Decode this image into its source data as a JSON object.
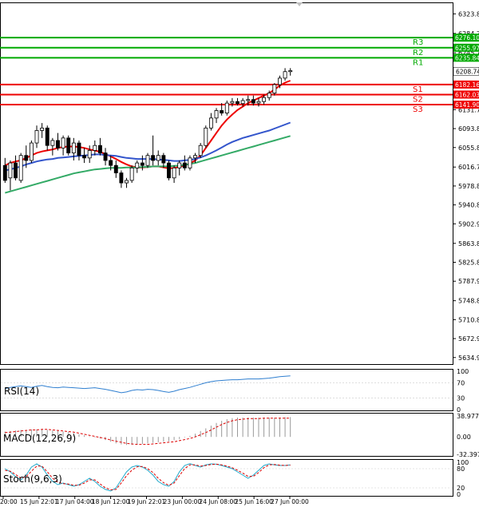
{
  "chart_data": [
    {
      "type": "candlestick",
      "panel": "price",
      "ylim": [
        5625,
        6342
      ],
      "y_ticks": [
        "6323.80",
        "6284.70",
        "6245.75",
        "6208.74",
        "6131.75",
        "6093.80",
        "6055.85",
        "6016.75",
        "5978.80",
        "5940.85",
        "5902.90",
        "5863.80",
        "5825.85",
        "5787.90",
        "5748.80",
        "5710.85",
        "5672.90",
        "5634.95"
      ],
      "x_tick_labels": [
        "20:00",
        "15 Jun 22:01",
        "17 Jun 04:00",
        "18 Jun 12:00",
        "19 Jun 22:01",
        "23 Jun 00:00",
        "24 Jun 08:00",
        "25 Jun 16:00",
        "27 Jun 00:00"
      ],
      "current_price": "6208.74",
      "levels": [
        {
          "name": "R3",
          "value": 6276.1,
          "label": "6276.10",
          "color": "#00aa00"
        },
        {
          "name": "R2",
          "value": 6255.97,
          "label": "6255.97",
          "color": "#00aa00"
        },
        {
          "name": "R1",
          "value": 6235.84,
          "label": "6235.84",
          "color": "#00aa00"
        },
        {
          "name": "S1",
          "value": 6182.16,
          "label": "6182.16",
          "color": "#ee0000"
        },
        {
          "name": "S2",
          "value": 6162.03,
          "label": "6162.03",
          "color": "#ee0000"
        },
        {
          "name": "S3",
          "value": 6141.9,
          "label": "6141.90",
          "color": "#ee0000"
        }
      ],
      "candles": [
        [
          6020,
          6035,
          5985,
          5990
        ],
        [
          5995,
          6030,
          5970,
          6025
        ],
        [
          6025,
          6040,
          5990,
          5995
        ],
        [
          5990,
          6045,
          5985,
          6040
        ],
        [
          6040,
          6060,
          6015,
          6030
        ],
        [
          6030,
          6070,
          6025,
          6065
        ],
        [
          6065,
          6100,
          6055,
          6090
        ],
        [
          6090,
          6105,
          6075,
          6095
        ],
        [
          6095,
          6100,
          6050,
          6060
        ],
        [
          6060,
          6075,
          6040,
          6070
        ],
        [
          6070,
          6085,
          6050,
          6055
        ],
        [
          6055,
          6080,
          6040,
          6075
        ],
        [
          6075,
          6080,
          6040,
          6045
        ],
        [
          6045,
          6075,
          6030,
          6065
        ],
        [
          6065,
          6070,
          6030,
          6040
        ],
        [
          6040,
          6055,
          6025,
          6035
        ],
        [
          6035,
          6060,
          6025,
          6050
        ],
        [
          6050,
          6070,
          6040,
          6060
        ],
        [
          6060,
          6075,
          6040,
          6045
        ],
        [
          6045,
          6055,
          6020,
          6030
        ],
        [
          6030,
          6040,
          6010,
          6020
        ],
        [
          6020,
          6030,
          5995,
          6005
        ],
        [
          6005,
          6010,
          5975,
          5985
        ],
        [
          5985,
          5995,
          5975,
          5990
        ],
        [
          5990,
          6020,
          5985,
          6015
        ],
        [
          6015,
          6030,
          6005,
          6025
        ],
        [
          6025,
          6040,
          6010,
          6020
        ],
        [
          6020,
          6045,
          6015,
          6040
        ],
        [
          6040,
          6080,
          6020,
          6030
        ],
        [
          6030,
          6050,
          6020,
          6040
        ],
        [
          6040,
          6045,
          6015,
          6025
        ],
        [
          6025,
          6030,
          5990,
          5995
        ],
        [
          5995,
          6020,
          5985,
          6015
        ],
        [
          6015,
          6030,
          6000,
          6025
        ],
        [
          6025,
          6040,
          6010,
          6015
        ],
        [
          6015,
          6040,
          6010,
          6035
        ],
        [
          6035,
          6045,
          6025,
          6040
        ],
        [
          6040,
          6065,
          6035,
          6060
        ],
        [
          6060,
          6100,
          6055,
          6095
        ],
        [
          6095,
          6125,
          6090,
          6115
        ],
        [
          6115,
          6135,
          6105,
          6130
        ],
        [
          6130,
          6145,
          6120,
          6125
        ],
        [
          6125,
          6150,
          6120,
          6145
        ],
        [
          6145,
          6155,
          6138,
          6148
        ],
        [
          6148,
          6155,
          6140,
          6144
        ],
        [
          6144,
          6155,
          6138,
          6150
        ],
        [
          6150,
          6160,
          6140,
          6152
        ],
        [
          6152,
          6160,
          6140,
          6145
        ],
        [
          6145,
          6155,
          6138,
          6148
        ],
        [
          6148,
          6162,
          6142,
          6156
        ],
        [
          6156,
          6170,
          6150,
          6165
        ],
        [
          6165,
          6185,
          6160,
          6182
        ],
        [
          6182,
          6200,
          6175,
          6195
        ],
        [
          6195,
          6215,
          6190,
          6208
        ],
        [
          6208,
          6215,
          6200,
          6210
        ]
      ],
      "series": [
        {
          "color": "#ee0000",
          "values": [
            6020,
            6025,
            6028,
            6030,
            6035,
            6040,
            6045,
            6048,
            6050,
            6052,
            6055,
            6057,
            6058,
            6058,
            6057,
            6055,
            6052,
            6050,
            6047,
            6043,
            6038,
            6033,
            6027,
            6022,
            6018,
            6016,
            6016,
            6017,
            6018,
            6018,
            6016,
            6014,
            6015,
            6017,
            6020,
            6024,
            6030,
            6040,
            6055,
            6070,
            6085,
            6100,
            6112,
            6122,
            6131,
            6138,
            6145,
            6150,
            6155,
            6160,
            6165,
            6172,
            6180,
            6186,
            6190
          ]
        },
        {
          "color": "#3355cc",
          "values": [
            6010,
            6012,
            6015,
            6018,
            6022,
            6025,
            6028,
            6030,
            6032,
            6033,
            6035,
            6036,
            6037,
            6038,
            6039,
            6040,
            6041,
            6042,
            6042,
            6041,
            6040,
            6039,
            6037,
            6035,
            6034,
            6033,
            6033,
            6033,
            6033,
            6032,
            6031,
            6030,
            6029,
            6029,
            6030,
            6031,
            6033,
            6036,
            6040,
            6045,
            6050,
            6056,
            6062,
            6067,
            6071,
            6075,
            6078,
            6081,
            6084,
            6087,
            6090,
            6094,
            6098,
            6102,
            6106
          ]
        },
        {
          "color": "#33aa66",
          "values": [
            5965,
            5968,
            5971,
            5974,
            5977,
            5980,
            5983,
            5986,
            5989,
            5992,
            5995,
            5998,
            6001,
            6004,
            6006,
            6008,
            6010,
            6012,
            6013,
            6014,
            6015,
            6015,
            6015,
            6016,
            6016,
            6016,
            6017,
            6017,
            6018,
            6018,
            6018,
            6018,
            6019,
            6020,
            6021,
            6023,
            6025,
            6028,
            6031,
            6034,
            6037,
            6040,
            6043,
            6046,
            6049,
            6052,
            6055,
            6058,
            6061,
            6064,
            6067,
            6070,
            6073,
            6076,
            6079
          ]
        }
      ]
    },
    {
      "type": "line",
      "panel": "rsi",
      "label": "RSI(14)",
      "ylim": [
        0,
        100
      ],
      "y_ticks": [
        "100",
        "70",
        "30",
        "0"
      ],
      "series": [
        {
          "color": "#2f7fd0",
          "values": [
            55,
            58,
            60,
            62,
            60,
            58,
            61,
            63,
            60,
            58,
            57,
            59,
            58,
            57,
            56,
            55,
            56,
            57,
            55,
            53,
            50,
            47,
            44,
            46,
            50,
            52,
            51,
            53,
            52,
            50,
            47,
            45,
            48,
            52,
            55,
            58,
            62,
            66,
            70,
            73,
            75,
            76,
            77,
            78,
            78,
            79,
            80,
            80,
            80,
            81,
            82,
            84,
            86,
            87,
            88
          ]
        }
      ]
    },
    {
      "type": "bar",
      "panel": "macd",
      "label": "MACD(12,26,9)",
      "ylim": [
        -32.397,
        38.977
      ],
      "y_ticks": [
        "38.977",
        "0.00",
        "-32.397"
      ],
      "series": [
        {
          "name": "histogram",
          "color": "#999999",
          "values": [
            10,
            11,
            12,
            13,
            13,
            14,
            14,
            14,
            13,
            12,
            11,
            10,
            9,
            7,
            5,
            3,
            1,
            -1,
            -3,
            -6,
            -9,
            -12,
            -14,
            -15,
            -15,
            -14,
            -13,
            -12,
            -11,
            -10,
            -9,
            -8,
            -6,
            -4,
            -1,
            2,
            6,
            11,
            16,
            21,
            26,
            30,
            33,
            35,
            36,
            36,
            36,
            36,
            36,
            36,
            36,
            36,
            36,
            37,
            37
          ]
        },
        {
          "name": "signal",
          "color": "#dd0000",
          "values": [
            8,
            9,
            10,
            11,
            12,
            13,
            13,
            14,
            14,
            13,
            12,
            11,
            10,
            9,
            7,
            5,
            3,
            1,
            -1,
            -3,
            -6,
            -8,
            -10,
            -12,
            -13,
            -14,
            -14,
            -14,
            -13,
            -12,
            -11,
            -10,
            -9,
            -7,
            -5,
            -3,
            0,
            4,
            8,
            13,
            18,
            23,
            27,
            30,
            32,
            33,
            34,
            34,
            34,
            35,
            35,
            35,
            35,
            35,
            35
          ]
        }
      ]
    },
    {
      "type": "line",
      "panel": "stoch",
      "label": "Stoch(9,6,3)",
      "ylim": [
        0,
        100
      ],
      "y_ticks": [
        "100",
        "80",
        "20",
        "0"
      ],
      "series": [
        {
          "color": "#22aacc",
          "values": [
            80,
            70,
            55,
            45,
            60,
            85,
            95,
            85,
            60,
            40,
            30,
            35,
            30,
            25,
            30,
            40,
            50,
            40,
            25,
            15,
            10,
            20,
            45,
            70,
            85,
            90,
            85,
            75,
            60,
            40,
            30,
            25,
            40,
            70,
            90,
            96,
            90,
            85,
            92,
            95,
            94,
            90,
            85,
            80,
            70,
            60,
            50,
            60,
            75,
            90,
            95,
            92,
            90,
            90,
            92
          ]
        },
        {
          "color": "#dd0000",
          "values": [
            75,
            72,
            62,
            50,
            55,
            72,
            88,
            88,
            70,
            50,
            38,
            33,
            32,
            28,
            28,
            35,
            45,
            45,
            32,
            20,
            14,
            15,
            35,
            58,
            75,
            86,
            87,
            80,
            68,
            50,
            36,
            28,
            35,
            58,
            80,
            92,
            92,
            88,
            90,
            93,
            94,
            92,
            88,
            83,
            75,
            66,
            56,
            56,
            68,
            83,
            92,
            93,
            91,
            90,
            91
          ]
        }
      ]
    }
  ]
}
